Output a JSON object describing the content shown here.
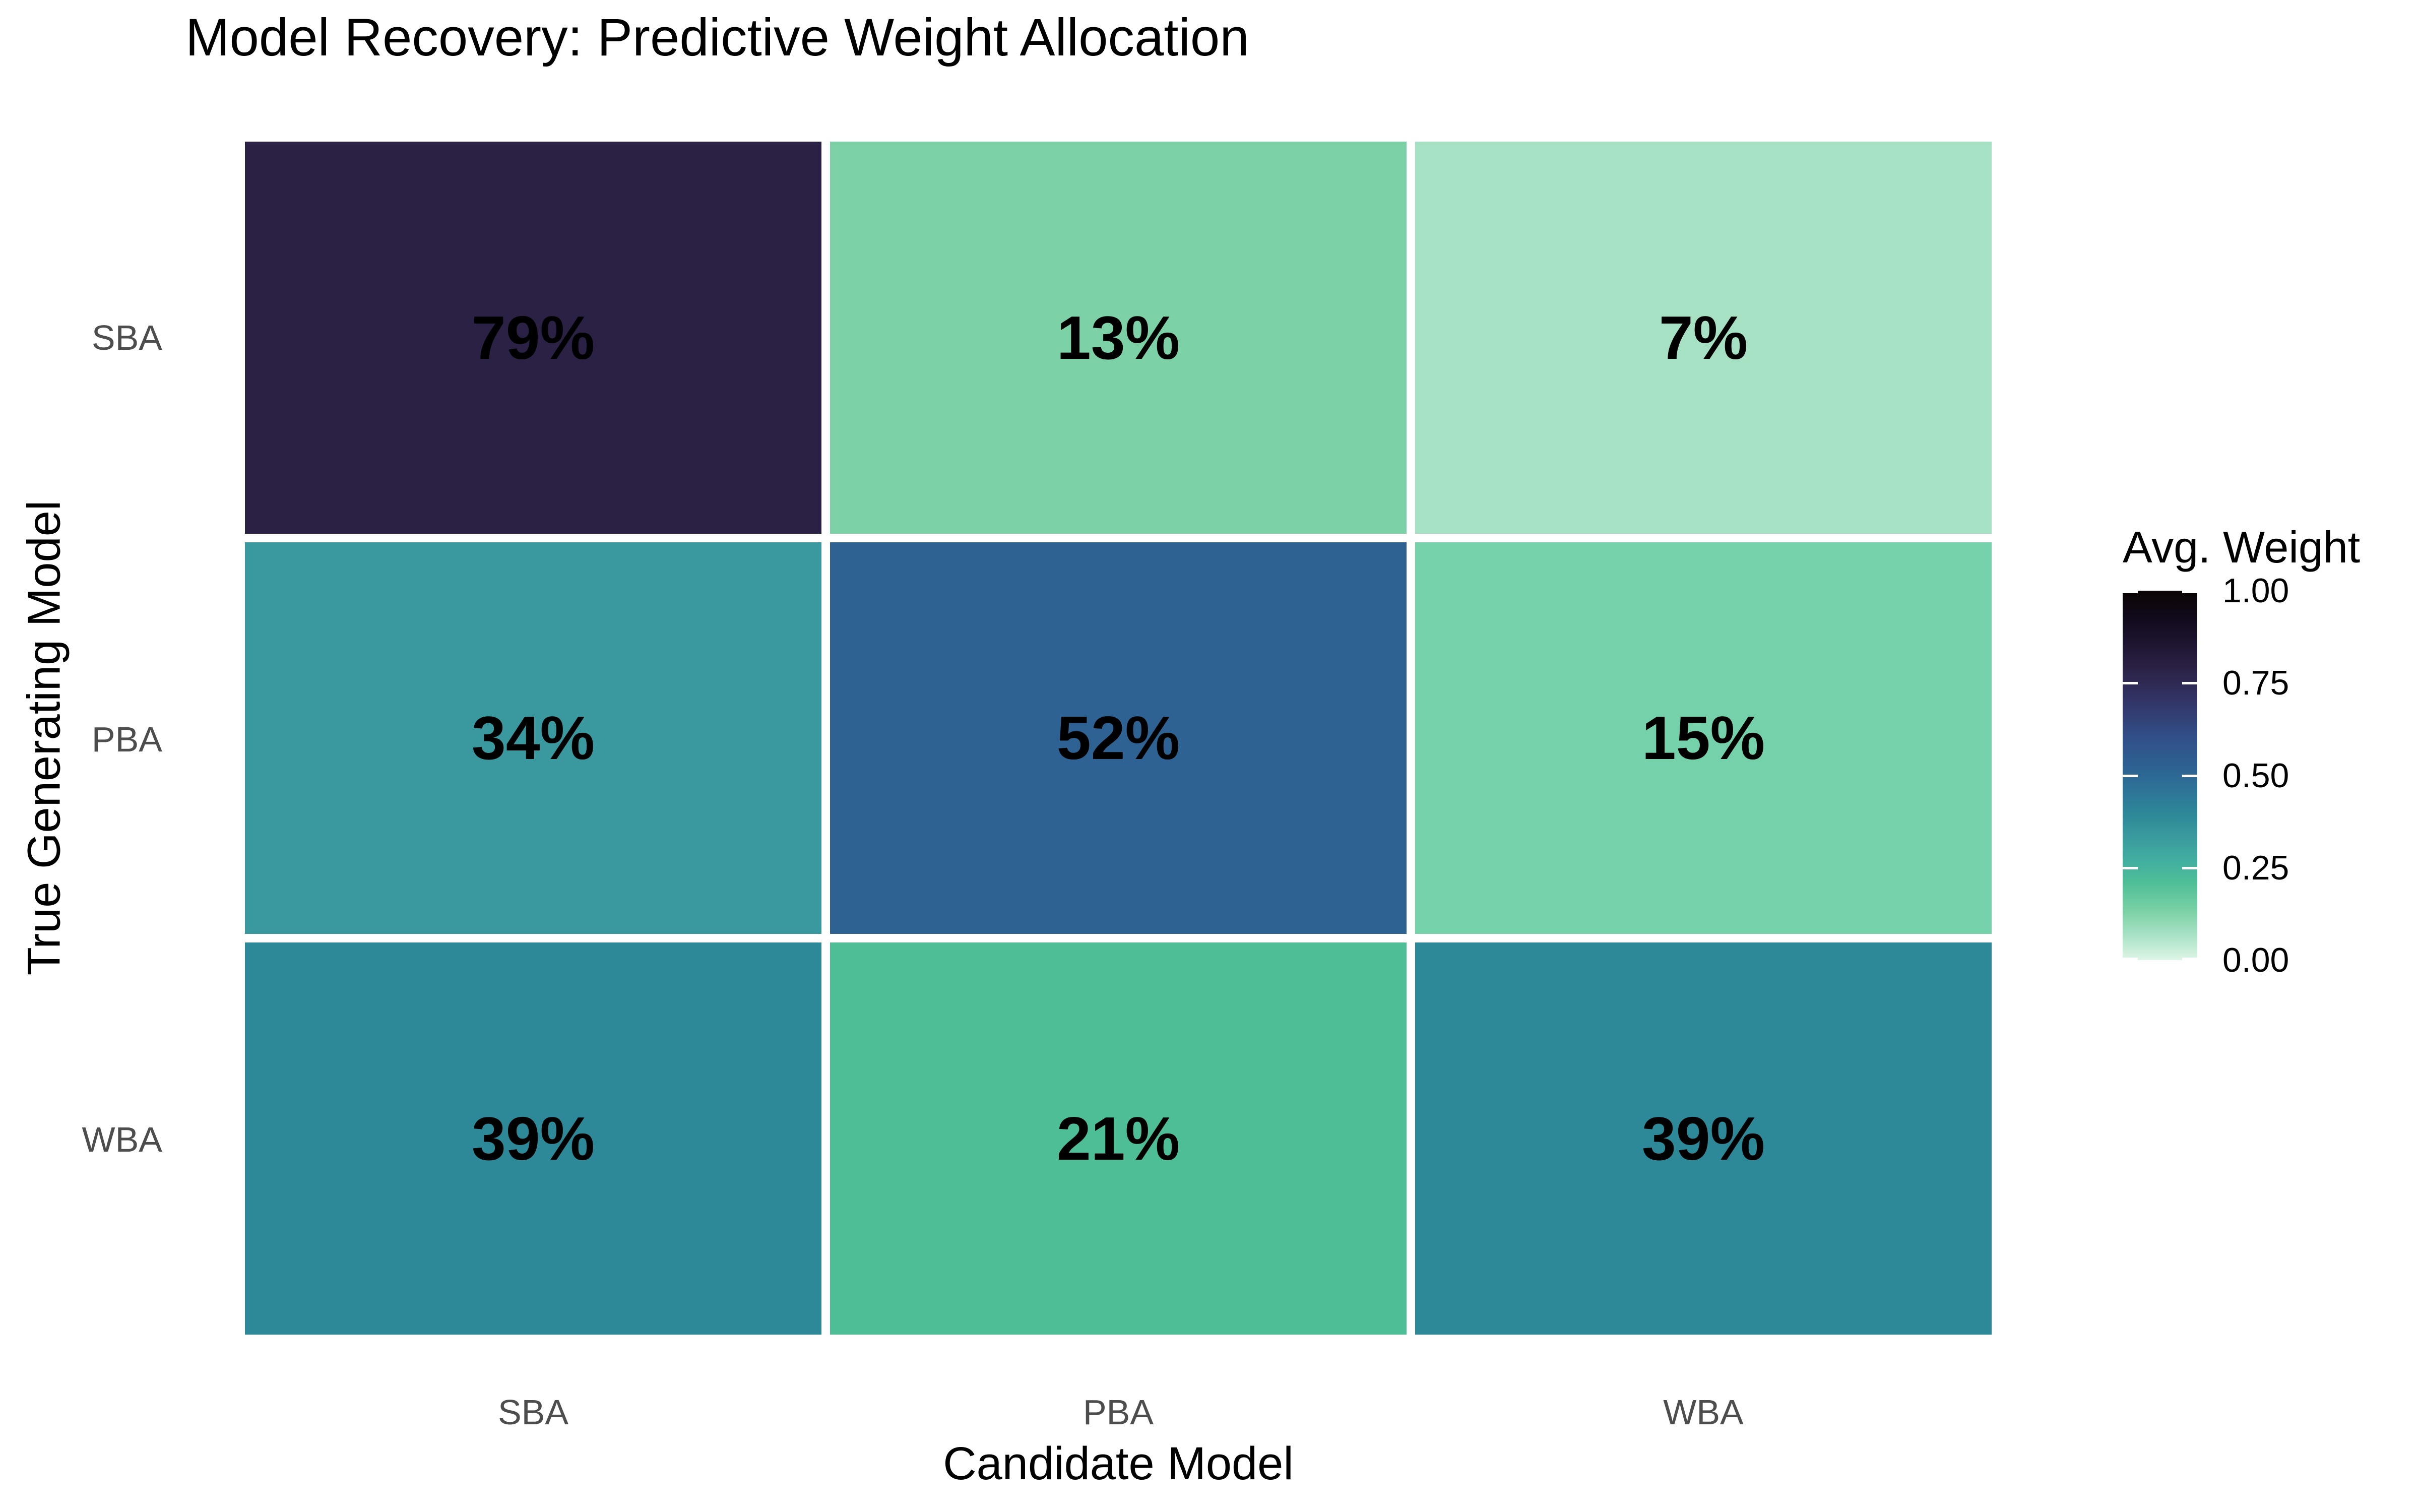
{
  "chart_data": {
    "type": "heatmap",
    "title": "Model Recovery: Predictive Weight Allocation",
    "xlabel": "Candidate Model",
    "ylabel": "True Generating Model",
    "x_categories": [
      "SBA",
      "PBA",
      "WBA"
    ],
    "y_categories": [
      "SBA",
      "PBA",
      "WBA"
    ],
    "values": [
      [
        0.79,
        0.13,
        0.07
      ],
      [
        0.34,
        0.52,
        0.15
      ],
      [
        0.39,
        0.21,
        0.39
      ]
    ],
    "cell_labels": [
      [
        "79%",
        "13%",
        "7%"
      ],
      [
        "34%",
        "52%",
        "15%"
      ],
      [
        "39%",
        "21%",
        "39%"
      ]
    ],
    "cell_colors": [
      [
        "#2b2145",
        "#7cd2a6",
        "#a6e1c4"
      ],
      [
        "#39999e",
        "#2d6292",
        "#74d1a9"
      ],
      [
        "#2d8997",
        "#4ebe97",
        "#2d8997"
      ]
    ],
    "grid_gap_color": "#ffffff",
    "legend": {
      "title": "Avg. Weight",
      "tick_labels": [
        "1.00",
        "0.75",
        "0.50",
        "0.25",
        "0.00"
      ],
      "range": [
        0.0,
        1.0
      ],
      "colormap": "mako-reversed",
      "position": "right",
      "gradient_stops": [
        {
          "pos": 0.0,
          "color": "#0b0405"
        },
        {
          "pos": 0.08,
          "color": "#120b1d"
        },
        {
          "pos": 0.21,
          "color": "#2b2145"
        },
        {
          "pos": 0.3,
          "color": "#323567"
        },
        {
          "pos": 0.4,
          "color": "#315089"
        },
        {
          "pos": 0.48,
          "color": "#2d6292"
        },
        {
          "pos": 0.56,
          "color": "#2e7a99"
        },
        {
          "pos": 0.61,
          "color": "#2d8997"
        },
        {
          "pos": 0.66,
          "color": "#39999e"
        },
        {
          "pos": 0.74,
          "color": "#43b19f"
        },
        {
          "pos": 0.79,
          "color": "#4ebe97"
        },
        {
          "pos": 0.87,
          "color": "#7cd2a6"
        },
        {
          "pos": 0.93,
          "color": "#a6e1c4"
        },
        {
          "pos": 1.0,
          "color": "#def5e5"
        }
      ]
    },
    "layout": {
      "grid_on": false,
      "axis_lines": false,
      "tick_marks": false
    }
  }
}
